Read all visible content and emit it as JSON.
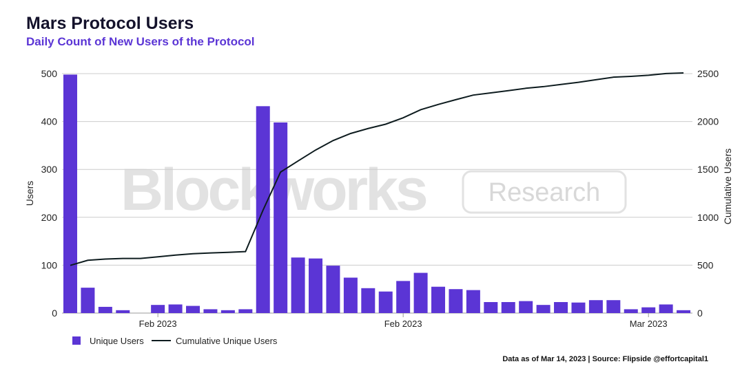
{
  "title": "Mars Protocol Users",
  "subtitle": "Daily Count of New Users of the Protocol",
  "footer": "Data as of Mar 14, 2023 | Source: Flipside @effortcapital1",
  "watermark": {
    "brand": "Blockworks",
    "tag": "Research"
  },
  "colors": {
    "bar": "#5b35d5",
    "line": "#0d1b1e",
    "title": "#14122b",
    "subtitle": "#5b35d5"
  },
  "chart_data": {
    "type": "bar",
    "title": "Mars Protocol Users",
    "subtitle": "Daily Count of New Users of the Protocol",
    "ylabel": "Users",
    "y2label": "Cumulative Users",
    "ylim": [
      0,
      500
    ],
    "y2lim": [
      0,
      2500
    ],
    "yticks": [
      0,
      100,
      200,
      300,
      400,
      500
    ],
    "y2ticks": [
      0,
      500,
      1000,
      1500,
      2000,
      2500
    ],
    "xticks": [
      {
        "index": 5,
        "label": "Feb 2023"
      },
      {
        "index": 19,
        "label": "Feb 2023"
      },
      {
        "index": 33,
        "label": "Mar 2023"
      }
    ],
    "grid": true,
    "legend_position": "bottom-left",
    "series": [
      {
        "name": "Unique Users",
        "type": "bar",
        "axis": "left",
        "values": [
          498,
          53,
          13,
          6,
          0,
          17,
          18,
          15,
          8,
          6,
          8,
          432,
          398,
          116,
          114,
          99,
          74,
          52,
          45,
          67,
          84,
          55,
          50,
          48,
          23,
          23,
          25,
          17,
          23,
          22,
          27,
          27,
          8,
          12,
          18,
          6
        ]
      },
      {
        "name": "Cumulative Unique Users",
        "type": "line",
        "axis": "right",
        "values": [
          498,
          551,
          564,
          570,
          570,
          587,
          605,
          620,
          628,
          634,
          642,
          1074,
          1472,
          1588,
          1702,
          1801,
          1875,
          1927,
          1972,
          2039,
          2123,
          2178,
          2228,
          2276,
          2299,
          2322,
          2347,
          2364,
          2387,
          2409,
          2436,
          2463,
          2471,
          2483,
          2501,
          2507
        ]
      }
    ]
  }
}
